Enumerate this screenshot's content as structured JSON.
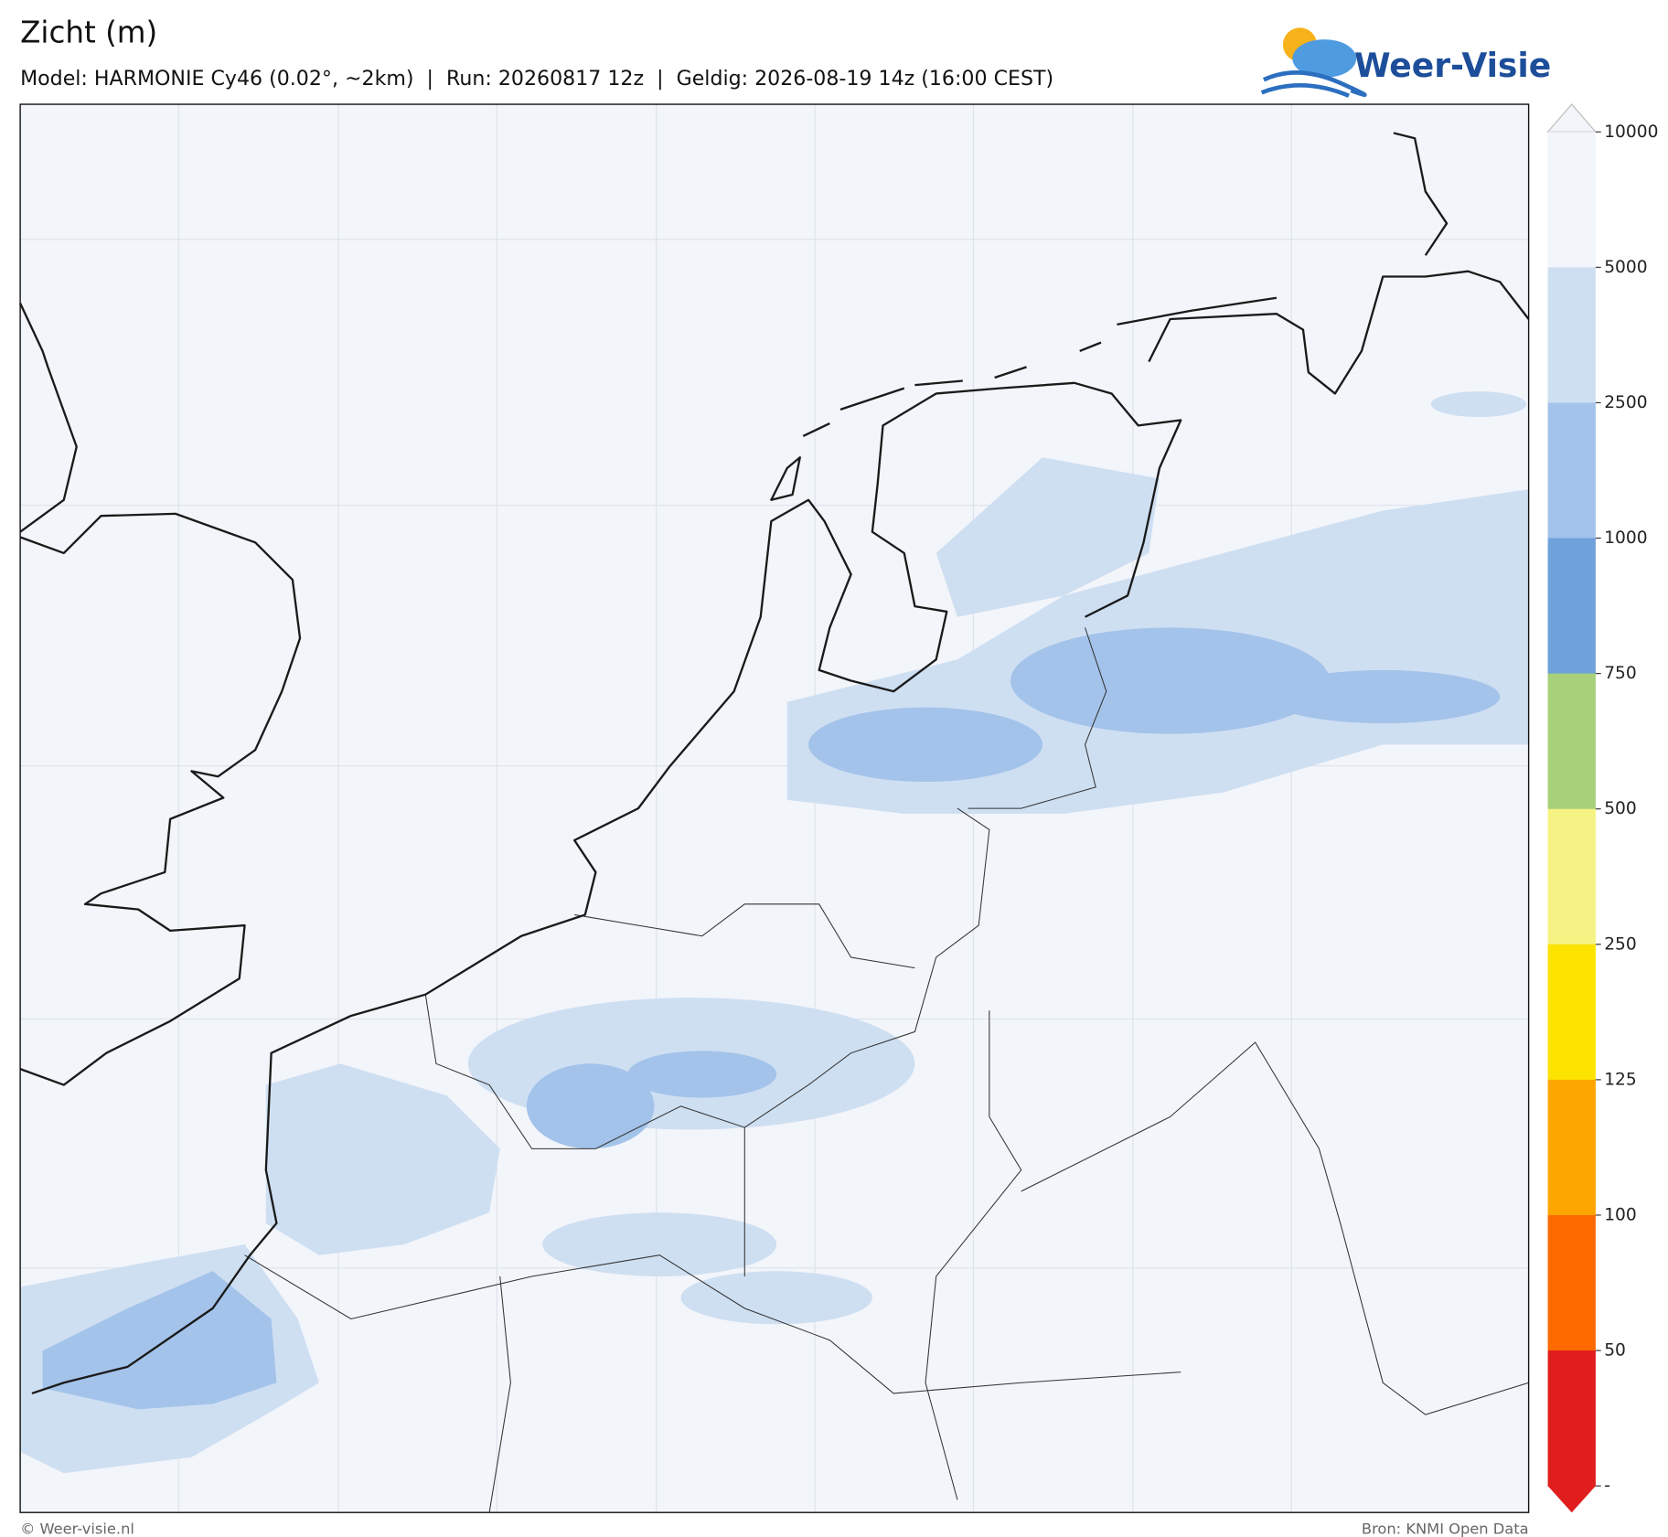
{
  "header": {
    "title": "Zicht (m)",
    "subtitle": "Model: HARMONIE Cy46 (0.02°, ~2km)  |  Run: 20260817 12z  |  Geldig: 2026-08-19 14z (16:00 CEST)",
    "logo": "Weer-Visie"
  },
  "colorbar": {
    "labels": [
      "10000",
      "5000",
      "2500",
      "1000",
      "750",
      "500",
      "250",
      "125",
      "100",
      "50",
      "-"
    ],
    "colors": [
      "#f2f5fa",
      "#cfdff2",
      "#a3c3ea",
      "#6fa1db",
      "#a6d07a",
      "#f4f383",
      "#fde300",
      "#fda600",
      "#fd6a00",
      "#e01e1e"
    ],
    "over_color": "#f2f5fa",
    "under_color": "#e01e1e"
  },
  "footer": {
    "left": "© Weer-visie.nl",
    "right": "Bron: KNMI Open Data"
  }
}
